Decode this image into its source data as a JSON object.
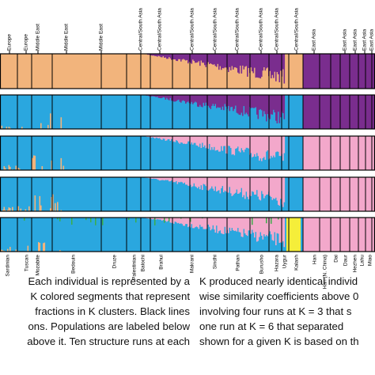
{
  "top_labels": [
    "Europe",
    "Europe",
    "Middle East",
    "Middle East",
    "Middle East",
    "Central/South Asia",
    "Central/South Asia",
    "Central/South Asia",
    "Central/South Asia",
    "Central/South Asia",
    "Central/South Asia",
    "Central/South Asia",
    "Central/South Asia",
    "East Asia",
    "East Asia",
    "East Asia",
    "East Asia",
    "East Asia"
  ],
  "populations": [
    "Sardinian",
    "Tuscan",
    "Mozabite",
    "Bedouin",
    "Druze",
    "Palestinian",
    "Balochi",
    "Brahui",
    "Makrani",
    "Sindhi",
    "Pathan",
    "Burusho",
    "Hazara",
    "Uygur",
    "Kalash",
    "Han",
    "Han (N. China)",
    "Dai",
    "Daur",
    "Hezhen",
    "Lahu",
    "Miao"
  ],
  "caption": {
    "left": [
      "Each individual is represented by a",
      "K colored segments that represent",
      "fractions in K clusters. Black lines",
      "ons. Populations are labeled below",
      "above it. Ten structure runs at each"
    ],
    "right": [
      "K produced nearly identical individ",
      "wise similarity coefficients above 0",
      "involving four runs at K = 3 that s",
      "one run at K = 6 that separated",
      "shown for a given K is based on th"
    ]
  }
}
